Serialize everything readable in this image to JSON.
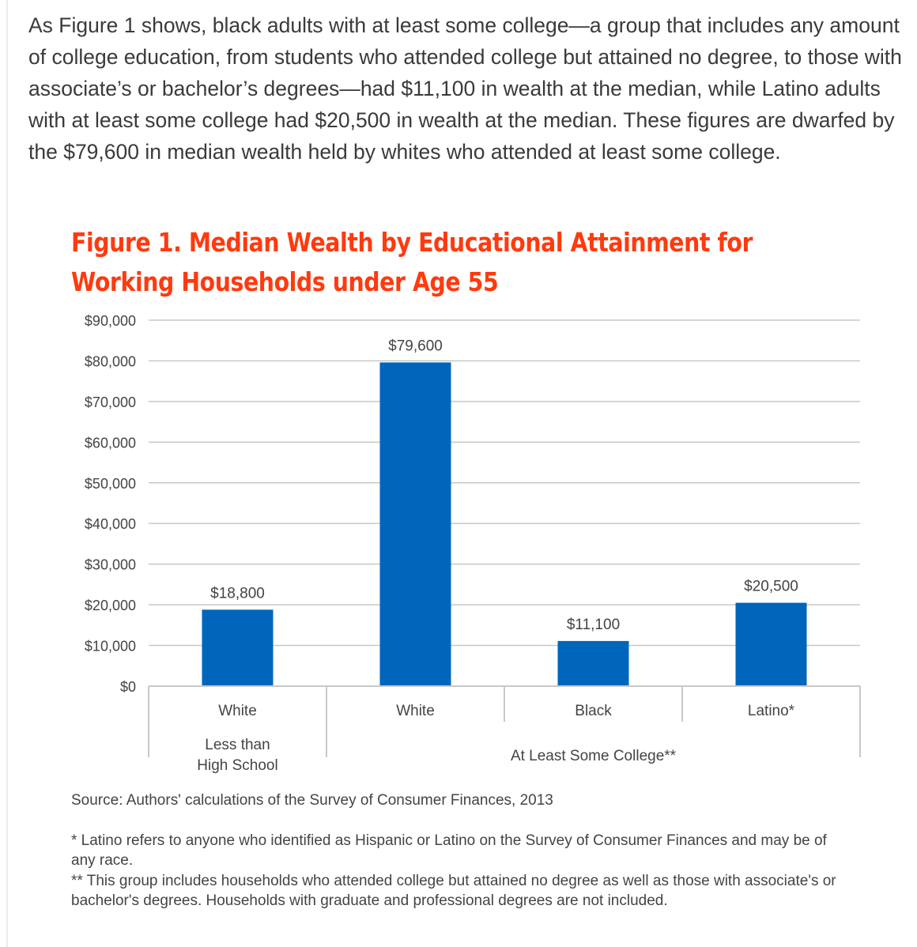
{
  "paragraph": "As Figure 1 shows, black adults with at least some college—a group that includes any amount of college education, from students who attended college but attained no degree, to those with associate’s or bachelor’s degrees—had $11,100 in wealth at the median, while Latino adults with at least some college had $20,500 in wealth at the median. These figures are dwarfed by the $79,600 in median wealth held by whites who attended at least some college.",
  "figure_title_line1": "Figure 1. Median Wealth by Educational Attainment for",
  "figure_title_line2": "Working Households under Age 55",
  "chart_data": {
    "type": "bar",
    "title": "Figure 1. Median Wealth by Educational Attainment for Working Households under Age 55",
    "categories": [
      "White",
      "White",
      "Black",
      "Latino*"
    ],
    "groups": [
      {
        "label": "Less than\nHigh School",
        "label_lines": [
          "Less than",
          "High School"
        ],
        "categories": [
          0
        ]
      },
      {
        "label": "At Least Some College**",
        "label_lines": [
          "At Least Some College**"
        ],
        "categories": [
          1,
          2,
          3
        ]
      }
    ],
    "values": [
      18800,
      79600,
      11100,
      20500
    ],
    "data_labels": [
      "$18,800",
      "$79,600",
      "$11,100",
      "$20,500"
    ],
    "yticks": [
      0,
      10000,
      20000,
      30000,
      40000,
      50000,
      60000,
      70000,
      80000,
      90000
    ],
    "ytick_labels": [
      "$0",
      "$10,000",
      "$20,000",
      "$30,000",
      "$40,000",
      "$50,000",
      "$60,000",
      "$70,000",
      "$80,000",
      "$90,000"
    ],
    "ylim": [
      0,
      90000
    ],
    "grid": true,
    "xlabel": "",
    "ylabel": "",
    "bar_color": "#0066bb"
  },
  "source": "Source: Authors' calculations of the Survey of Consumer Finances, 2013",
  "footnote1": "* Latino refers to anyone who identified as Hispanic or Latino on the Survey of Consumer Finances and may be of any race.",
  "footnote2": "** This group includes households who attended college but attained no degree as well as those with associate's or bachelor's degrees. Households with graduate and professional degrees are not included."
}
